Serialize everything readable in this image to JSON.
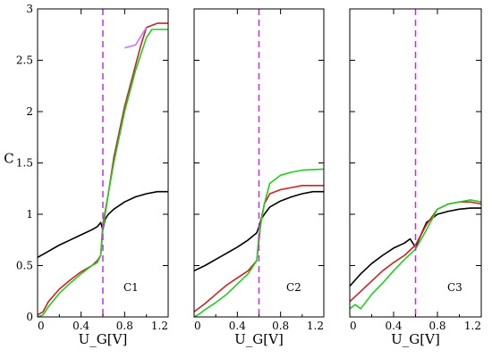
{
  "chart_data": [
    {
      "type": "line",
      "panel_label": "C1",
      "ylabel": "C",
      "xlabel": "U_G[V]",
      "xlim": [
        0,
        1.2
      ],
      "ylim": [
        0,
        3
      ],
      "xticks": [
        "0",
        "0.4",
        "0.8",
        "1.2"
      ],
      "yticks": [
        "0",
        "0.5",
        "1",
        "1.5",
        "2",
        "2.5",
        "3"
      ],
      "vline_x": 0.6,
      "series": [
        {
          "color": "#000000",
          "points": [
            [
              0,
              0.58
            ],
            [
              0.1,
              0.64
            ],
            [
              0.2,
              0.7
            ],
            [
              0.3,
              0.75
            ],
            [
              0.4,
              0.8
            ],
            [
              0.5,
              0.85
            ],
            [
              0.55,
              0.88
            ],
            [
              0.58,
              0.92
            ],
            [
              0.6,
              0.85
            ],
            [
              0.62,
              0.95
            ],
            [
              0.65,
              1.0
            ],
            [
              0.7,
              1.05
            ],
            [
              0.8,
              1.12
            ],
            [
              0.9,
              1.17
            ],
            [
              1.0,
              1.2
            ],
            [
              1.1,
              1.22
            ],
            [
              1.2,
              1.22
            ]
          ]
        },
        {
          "color": "#cc2222",
          "points": [
            [
              0,
              0.02
            ],
            [
              0.05,
              0.05
            ],
            [
              0.1,
              0.15
            ],
            [
              0.2,
              0.27
            ],
            [
              0.3,
              0.36
            ],
            [
              0.4,
              0.44
            ],
            [
              0.5,
              0.5
            ],
            [
              0.55,
              0.55
            ],
            [
              0.58,
              0.6
            ],
            [
              0.6,
              0.9
            ],
            [
              0.65,
              1.2
            ],
            [
              0.7,
              1.55
            ],
            [
              0.8,
              2.05
            ],
            [
              0.9,
              2.45
            ],
            [
              0.95,
              2.65
            ],
            [
              1.0,
              2.82
            ],
            [
              1.1,
              2.86
            ],
            [
              1.2,
              2.86
            ]
          ]
        },
        {
          "color": "#22cc22",
          "points": [
            [
              0,
              0.0
            ],
            [
              0.05,
              0.02
            ],
            [
              0.1,
              0.1
            ],
            [
              0.2,
              0.23
            ],
            [
              0.3,
              0.33
            ],
            [
              0.4,
              0.42
            ],
            [
              0.5,
              0.5
            ],
            [
              0.55,
              0.53
            ],
            [
              0.58,
              0.6
            ],
            [
              0.6,
              0.85
            ],
            [
              0.65,
              1.2
            ],
            [
              0.7,
              1.5
            ],
            [
              0.8,
              2.0
            ],
            [
              0.9,
              2.4
            ],
            [
              1.0,
              2.72
            ],
            [
              1.05,
              2.8
            ],
            [
              1.1,
              2.8
            ],
            [
              1.2,
              2.8
            ]
          ]
        },
        {
          "color": "#cc77ff",
          "points": [
            [
              0.8,
              2.62
            ],
            [
              0.9,
              2.65
            ],
            [
              1.0,
              2.82
            ]
          ]
        }
      ]
    },
    {
      "type": "line",
      "panel_label": "C2",
      "xlabel": "U_G[V]",
      "xlim": [
        0,
        1.2
      ],
      "ylim": [
        0,
        3
      ],
      "xticks": [
        "0",
        "0.4",
        "0.8",
        "1.2"
      ],
      "vline_x": 0.6,
      "series": [
        {
          "color": "#000000",
          "points": [
            [
              0,
              0.45
            ],
            [
              0.1,
              0.5
            ],
            [
              0.2,
              0.56
            ],
            [
              0.3,
              0.62
            ],
            [
              0.4,
              0.68
            ],
            [
              0.5,
              0.75
            ],
            [
              0.58,
              0.82
            ],
            [
              0.6,
              0.88
            ],
            [
              0.62,
              0.95
            ],
            [
              0.65,
              1.0
            ],
            [
              0.7,
              1.07
            ],
            [
              0.8,
              1.13
            ],
            [
              0.9,
              1.17
            ],
            [
              1.0,
              1.2
            ],
            [
              1.1,
              1.22
            ],
            [
              1.2,
              1.22
            ]
          ]
        },
        {
          "color": "#cc2222",
          "points": [
            [
              0,
              0.05
            ],
            [
              0.1,
              0.13
            ],
            [
              0.2,
              0.22
            ],
            [
              0.3,
              0.31
            ],
            [
              0.4,
              0.38
            ],
            [
              0.5,
              0.45
            ],
            [
              0.58,
              0.55
            ],
            [
              0.6,
              0.75
            ],
            [
              0.62,
              0.95
            ],
            [
              0.65,
              1.1
            ],
            [
              0.7,
              1.2
            ],
            [
              0.8,
              1.24
            ],
            [
              0.9,
              1.26
            ],
            [
              1.0,
              1.28
            ],
            [
              1.2,
              1.28
            ]
          ]
        },
        {
          "color": "#22cc22",
          "points": [
            [
              0,
              0.0
            ],
            [
              0.05,
              0.03
            ],
            [
              0.1,
              0.07
            ],
            [
              0.2,
              0.14
            ],
            [
              0.3,
              0.22
            ],
            [
              0.4,
              0.32
            ],
            [
              0.5,
              0.42
            ],
            [
              0.58,
              0.55
            ],
            [
              0.6,
              0.8
            ],
            [
              0.65,
              1.1
            ],
            [
              0.7,
              1.3
            ],
            [
              0.8,
              1.38
            ],
            [
              0.9,
              1.41
            ],
            [
              1.0,
              1.43
            ],
            [
              1.2,
              1.44
            ]
          ]
        }
      ]
    },
    {
      "type": "line",
      "panel_label": "C3",
      "xlabel": "U_G[V]",
      "xlim": [
        0,
        1.2
      ],
      "ylim": [
        0,
        3
      ],
      "xticks": [
        "0",
        "0.4",
        "0.8",
        "1.2"
      ],
      "vline_x": 0.6,
      "series": [
        {
          "color": "#000000",
          "points": [
            [
              0,
              0.3
            ],
            [
              0.1,
              0.42
            ],
            [
              0.2,
              0.52
            ],
            [
              0.3,
              0.6
            ],
            [
              0.4,
              0.67
            ],
            [
              0.5,
              0.72
            ],
            [
              0.55,
              0.76
            ],
            [
              0.6,
              0.68
            ],
            [
              0.65,
              0.8
            ],
            [
              0.7,
              0.92
            ],
            [
              0.8,
              1.0
            ],
            [
              0.9,
              1.03
            ],
            [
              1.0,
              1.05
            ],
            [
              1.1,
              1.06
            ],
            [
              1.2,
              1.06
            ]
          ]
        },
        {
          "color": "#cc2222",
          "points": [
            [
              0,
              0.15
            ],
            [
              0.1,
              0.25
            ],
            [
              0.2,
              0.35
            ],
            [
              0.3,
              0.45
            ],
            [
              0.4,
              0.53
            ],
            [
              0.5,
              0.6
            ],
            [
              0.6,
              0.7
            ],
            [
              0.7,
              0.9
            ],
            [
              0.8,
              1.05
            ],
            [
              0.9,
              1.1
            ],
            [
              1.0,
              1.12
            ],
            [
              1.1,
              1.12
            ],
            [
              1.2,
              1.1
            ]
          ]
        },
        {
          "color": "#22cc22",
          "points": [
            [
              0,
              0.08
            ],
            [
              0.05,
              0.12
            ],
            [
              0.1,
              0.08
            ],
            [
              0.15,
              0.15
            ],
            [
              0.2,
              0.22
            ],
            [
              0.3,
              0.33
            ],
            [
              0.4,
              0.45
            ],
            [
              0.5,
              0.56
            ],
            [
              0.6,
              0.66
            ],
            [
              0.7,
              0.85
            ],
            [
              0.8,
              1.05
            ],
            [
              0.9,
              1.1
            ],
            [
              1.0,
              1.12
            ],
            [
              1.1,
              1.14
            ],
            [
              1.2,
              1.12
            ]
          ]
        }
      ]
    }
  ]
}
